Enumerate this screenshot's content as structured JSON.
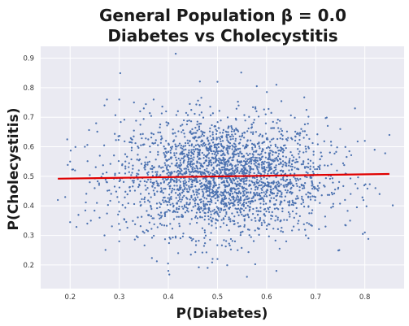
{
  "chart_data": {
    "type": "scatter",
    "title_lines": [
      "General Population β = 0.0",
      "Diabetes vs Cholecystitis"
    ],
    "xlabel": "P(Diabetes)",
    "ylabel": "P(Cholecystitis)",
    "xlim": [
      0.14,
      0.88
    ],
    "ylim": [
      0.12,
      0.94
    ],
    "x_ticks": [
      0.2,
      0.3,
      0.4,
      0.5,
      0.6,
      0.7,
      0.8
    ],
    "x_tick_labels": [
      "0.2",
      "0.3",
      "0.4",
      "0.5",
      "0.6",
      "0.7",
      "0.8"
    ],
    "y_ticks": [
      0.2,
      0.3,
      0.4,
      0.5,
      0.6,
      0.7,
      0.8,
      0.9
    ],
    "y_tick_labels": [
      "0.2",
      "0.3",
      "0.4",
      "0.5",
      "0.6",
      "0.7",
      "0.8",
      "0.9"
    ],
    "grid": true,
    "background_color": "#eaeaf2",
    "series": [
      {
        "kind": "points",
        "color": "#4c72b0",
        "points": [
          [
            0.415,
            0.915
          ],
          [
            0.5,
            0.82
          ],
          [
            0.58,
            0.805
          ],
          [
            0.62,
            0.81
          ],
          [
            0.235,
            0.34
          ],
          [
            0.175,
            0.42
          ],
          [
            0.19,
            0.43
          ],
          [
            0.2,
            0.345
          ],
          [
            0.26,
            0.36
          ],
          [
            0.27,
            0.74
          ],
          [
            0.275,
            0.76
          ],
          [
            0.3,
            0.76
          ],
          [
            0.35,
            0.73
          ],
          [
            0.33,
            0.75
          ],
          [
            0.37,
            0.76
          ],
          [
            0.78,
            0.73
          ],
          [
            0.75,
            0.66
          ],
          [
            0.8,
            0.62
          ],
          [
            0.85,
            0.64
          ],
          [
            0.82,
            0.59
          ],
          [
            0.83,
            0.44
          ],
          [
            0.77,
            0.35
          ],
          [
            0.72,
            0.33
          ],
          [
            0.8,
            0.31
          ],
          [
            0.68,
            0.3
          ],
          [
            0.62,
            0.18
          ],
          [
            0.4,
            0.18
          ],
          [
            0.48,
            0.19
          ],
          [
            0.56,
            0.16
          ],
          [
            0.5,
            0.22
          ],
          [
            0.42,
            0.24
          ],
          [
            0.64,
            0.28
          ],
          [
            0.3,
            0.28
          ],
          [
            0.27,
            0.3
          ],
          [
            0.25,
            0.46
          ],
          [
            0.2,
            0.55
          ],
          [
            0.21,
            0.52
          ],
          [
            0.23,
            0.6
          ],
          [
            0.24,
            0.48
          ]
        ]
      },
      {
        "kind": "line",
        "color": "#e00000",
        "x": [
          0.175,
          0.85
        ],
        "y": [
          0.492,
          0.508
        ]
      }
    ]
  }
}
